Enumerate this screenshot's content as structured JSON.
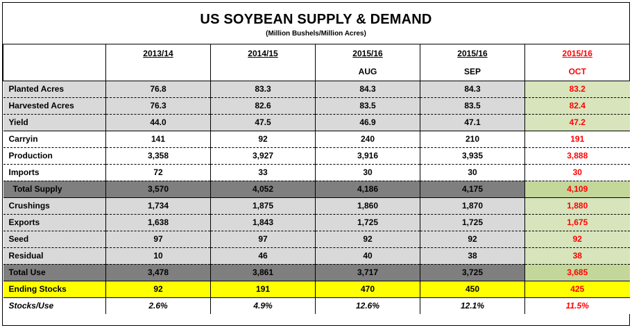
{
  "title": "US SOYBEAN SUPPLY & DEMAND",
  "subtitle": "(Million Bushels/Million Acres)",
  "columns": [
    {
      "year": "2013/14",
      "month": ""
    },
    {
      "year": "2014/15",
      "month": ""
    },
    {
      "year": "2015/16",
      "month": "AUG"
    },
    {
      "year": "2015/16",
      "month": "SEP"
    },
    {
      "year": "2015/16",
      "month": "OCT"
    }
  ],
  "rows": [
    {
      "label": "Planted Acres",
      "values": [
        "76.8",
        "83.3",
        "84.3",
        "84.3",
        "83.2"
      ]
    },
    {
      "label": "Harvested Acres",
      "values": [
        "76.3",
        "82.6",
        "83.5",
        "83.5",
        "82.4"
      ]
    },
    {
      "label": "Yield",
      "values": [
        "44.0",
        "47.5",
        "46.9",
        "47.1",
        "47.2"
      ]
    },
    {
      "label": "Carryin",
      "values": [
        "141",
        "92",
        "240",
        "210",
        "191"
      ]
    },
    {
      "label": "Production",
      "values": [
        "3,358",
        "3,927",
        "3,916",
        "3,935",
        "3,888"
      ]
    },
    {
      "label": "Imports",
      "values": [
        "72",
        "33",
        "30",
        "30",
        "30"
      ]
    },
    {
      "label": "Total Supply",
      "values": [
        "3,570",
        "4,052",
        "4,186",
        "4,175",
        "4,109"
      ]
    },
    {
      "label": "Crushings",
      "values": [
        "1,734",
        "1,875",
        "1,860",
        "1,870",
        "1,880"
      ]
    },
    {
      "label": "Exports",
      "values": [
        "1,638",
        "1,843",
        "1,725",
        "1,725",
        "1,675"
      ]
    },
    {
      "label": "Seed",
      "values": [
        "97",
        "97",
        "92",
        "92",
        "92"
      ]
    },
    {
      "label": "Residual",
      "values": [
        "10",
        "46",
        "40",
        "38",
        "38"
      ]
    },
    {
      "label": "Total Use",
      "values": [
        "3,478",
        "3,861",
        "3,717",
        "3,725",
        "3,685"
      ]
    },
    {
      "label": "Ending Stocks",
      "values": [
        "92",
        "191",
        "470",
        "450",
        "425"
      ]
    },
    {
      "label": "Stocks/Use",
      "values": [
        "2.6%",
        "4.9%",
        "12.6%",
        "12.1%",
        "11.5%"
      ]
    }
  ],
  "colors": {
    "gray_row": "#d9d9d9",
    "dark_row": "#7f7f7f",
    "highlight": "#ffff00",
    "oct_col": "#d8e4bc",
    "oct_text": "#ff0000"
  }
}
